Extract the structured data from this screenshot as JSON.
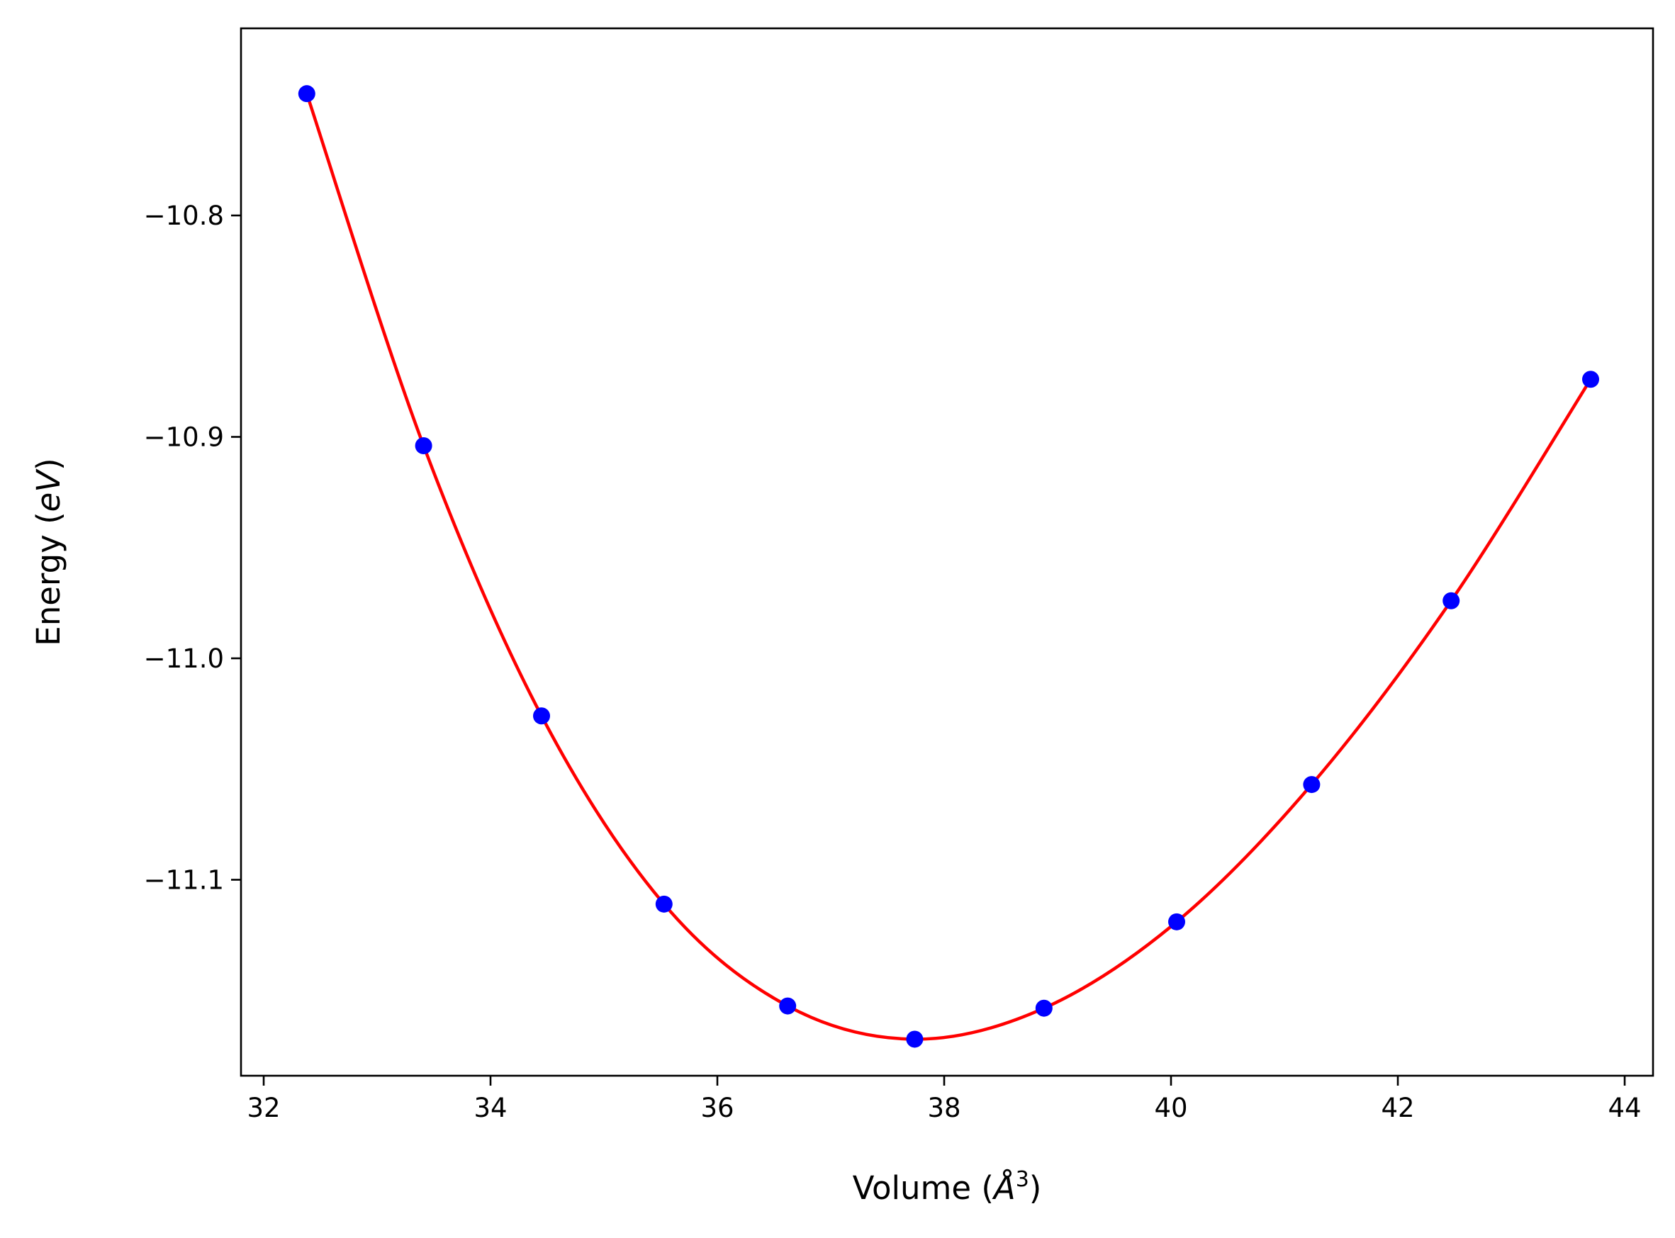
{
  "chart_data": {
    "type": "scatter",
    "xlabel": "Volume (Å³)",
    "xlabel_parts": {
      "prefix": "Volume (",
      "unit": "Å",
      "sup": "3",
      "suffix": ")"
    },
    "ylabel": "Energy (eV)",
    "ylabel_parts": {
      "prefix": "Energy (",
      "unit": "eV",
      "suffix": ")"
    },
    "xlim": [
      31.8,
      44.25
    ],
    "ylim": [
      -11.1885,
      -10.7155
    ],
    "xticks": [
      32,
      34,
      36,
      38,
      40,
      42,
      44
    ],
    "xtick_labels": [
      "32",
      "34",
      "36",
      "38",
      "40",
      "42",
      "44"
    ],
    "yticks": [
      -10.8,
      -10.9,
      -11.0,
      -11.1
    ],
    "ytick_labels": [
      "−10.8",
      "−10.9",
      "−11.0",
      "−11.1"
    ],
    "grid": false,
    "series": [
      {
        "kind": "points",
        "color": "#0000ff",
        "x": [
          32.38,
          33.41,
          34.45,
          35.53,
          36.62,
          37.74,
          38.88,
          40.05,
          41.24,
          42.47,
          43.7
        ],
        "y": [
          -10.745,
          -10.904,
          -11.026,
          -11.111,
          -11.157,
          -11.172,
          -11.158,
          -11.119,
          -11.057,
          -10.974,
          -10.874
        ]
      },
      {
        "kind": "fit-curve",
        "color": "#ff0000"
      }
    ]
  }
}
